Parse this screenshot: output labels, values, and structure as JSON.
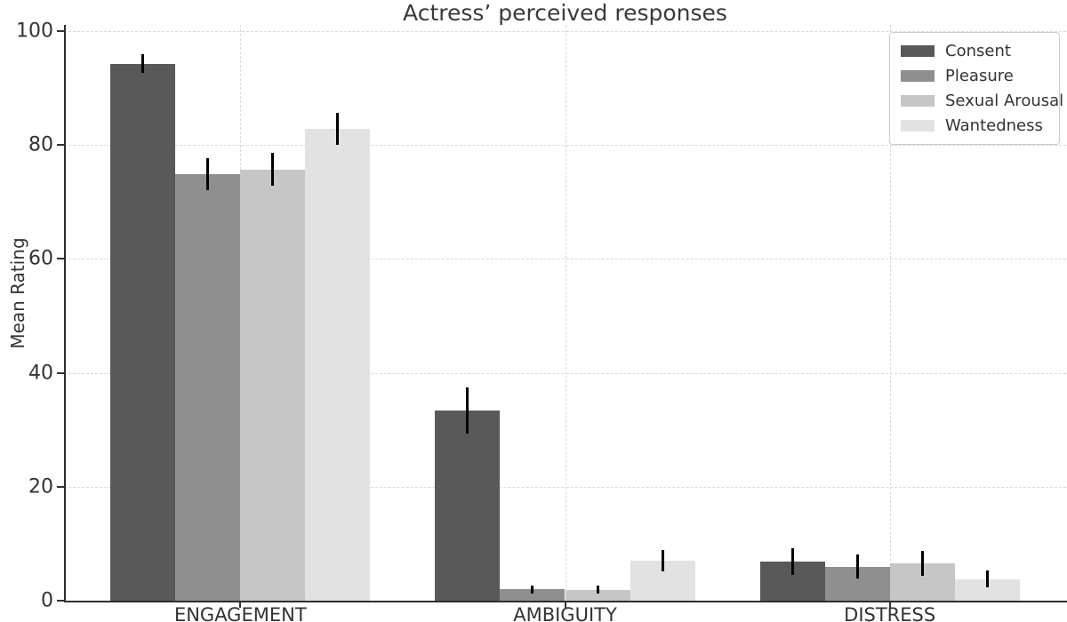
{
  "chart_data": {
    "type": "bar",
    "title": "Actress’ perceived responses",
    "xlabel": "",
    "ylabel": "Mean Rating",
    "categories": [
      "ENGAGEMENT",
      "AMBIGUITY",
      "DISTRESS"
    ],
    "series": [
      {
        "name": "Consent",
        "color": "#595959",
        "values": [
          94.3,
          33.4,
          6.9
        ],
        "errors": [
          1.7,
          4.1,
          2.3
        ]
      },
      {
        "name": "Pleasure",
        "color": "#8f8f8f",
        "values": [
          74.9,
          2.0,
          6.0
        ],
        "errors": [
          2.8,
          0.7,
          2.1
        ]
      },
      {
        "name": "Sexual Arousal",
        "color": "#c6c6c6",
        "values": [
          75.7,
          1.9,
          6.6
        ],
        "errors": [
          2.9,
          0.7,
          2.2
        ]
      },
      {
        "name": "Wantedness",
        "color": "#e2e2e2",
        "values": [
          82.9,
          7.0,
          3.8
        ],
        "errors": [
          2.8,
          1.9,
          1.5
        ]
      }
    ],
    "ylim": [
      0,
      100
    ],
    "yticks": [
      0,
      20,
      40,
      60,
      80,
      100
    ],
    "grid": "dashed, both axes",
    "legend_position": "upper right",
    "error_bar_color": "#000000"
  },
  "colors": {
    "background": "#ffffff",
    "spine": "#2e2e2e",
    "grid": "#d9d9d9",
    "text": "#333333",
    "title_text": "#3a3a3a",
    "legend_border": "#cccccc"
  }
}
